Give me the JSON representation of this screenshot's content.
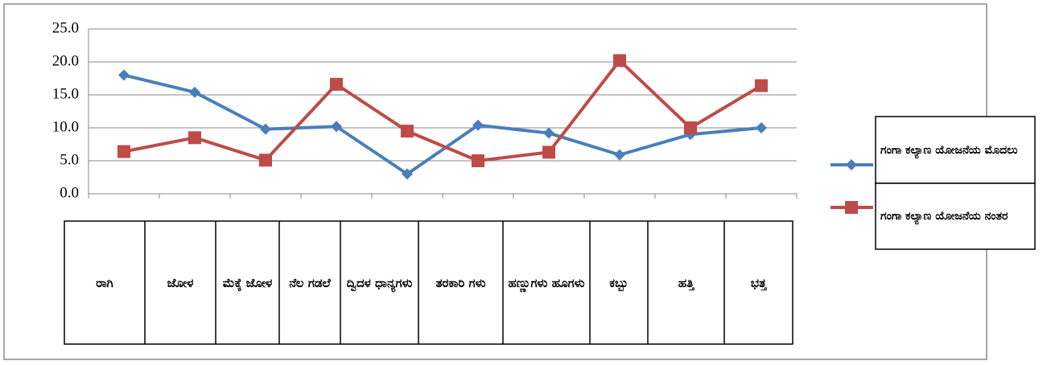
{
  "chart_data": {
    "type": "line",
    "categories": [
      "ರಾಗಿ",
      "ಜೋಳ",
      "ಮೆಕ್ಕೆ ಜೋಳ",
      "ನೆಲ ಗಡಲೆ",
      "ದ್ವಿದಳ ಧಾನ್ಯಗಳು",
      "ತರಕಾರಿ ಗಳು",
      "ಹಣ್ಣುಗಳು ಹೂಗಳು",
      "ಕಬ್ಬು",
      "ಹತ್ತಿ",
      "ಭತ್ತ"
    ],
    "series": [
      {
        "name": "ಗಂಗಾ ಕಲ್ಯಾಣ ಯೋಜನೆಯ ಮೊದಲು",
        "color": "#4a7ebb",
        "marker": "diamond",
        "values": [
          18.0,
          15.4,
          9.8,
          10.2,
          3.0,
          10.4,
          9.2,
          5.9,
          9.0,
          10.0
        ]
      },
      {
        "name": "ಗಂಗಾ ಕಲ್ಯಾಣ ಯೋಜನೆಯ ನಂತರ",
        "color": "#be4b48",
        "marker": "square",
        "values": [
          6.4,
          8.5,
          5.1,
          16.6,
          9.5,
          5.0,
          6.3,
          20.2,
          10.0,
          16.4
        ]
      }
    ],
    "ylim": [
      0,
      25
    ],
    "yticks": [
      {
        "value": 0,
        "label": "0.0"
      },
      {
        "value": 5,
        "label": "5.0"
      },
      {
        "value": 10,
        "label": "10.0"
      },
      {
        "value": 15,
        "label": "15.0"
      },
      {
        "value": 20,
        "label": "20.0"
      },
      {
        "value": 25,
        "label": "25.0"
      }
    ],
    "grid": true,
    "legend": "right"
  }
}
